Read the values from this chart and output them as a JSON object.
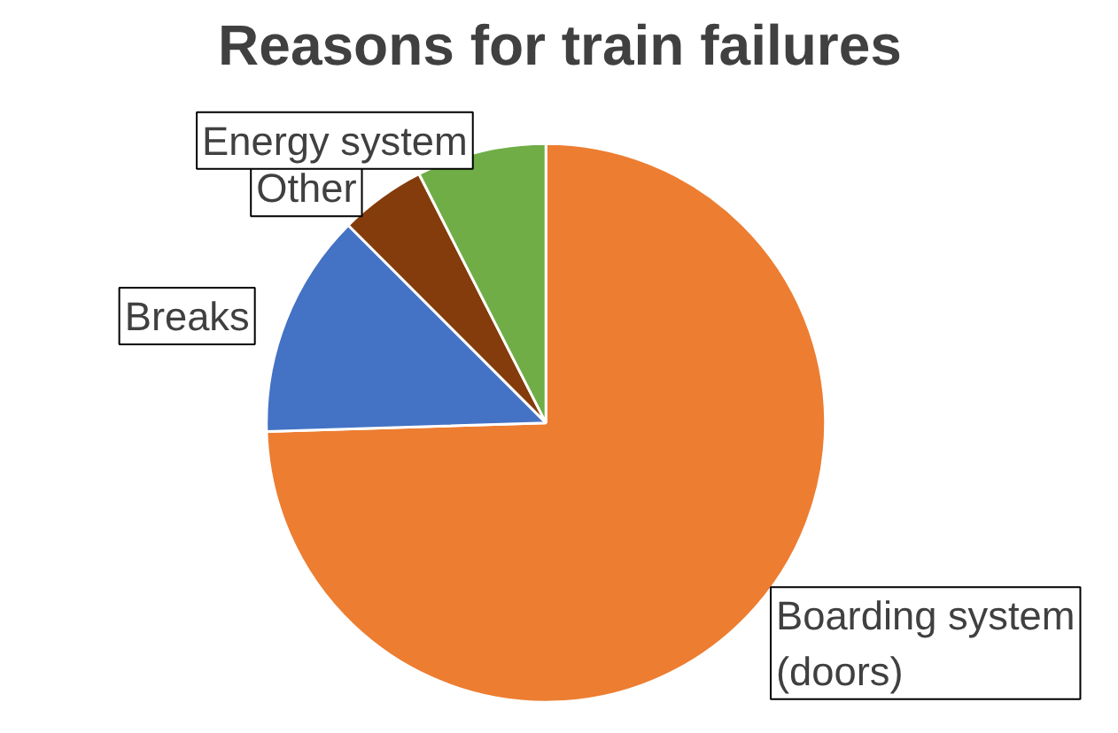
{
  "chart_data": {
    "type": "pie",
    "title": "Reasons for train failures",
    "categories": [
      "Boarding system\n(doors)",
      "Breaks",
      "Other",
      "Energy system"
    ],
    "values": [
      74.5,
      13,
      5,
      7.5
    ],
    "colors": [
      "#ed7d31",
      "#4472c4",
      "#843c0c",
      "#70ad47"
    ]
  }
}
